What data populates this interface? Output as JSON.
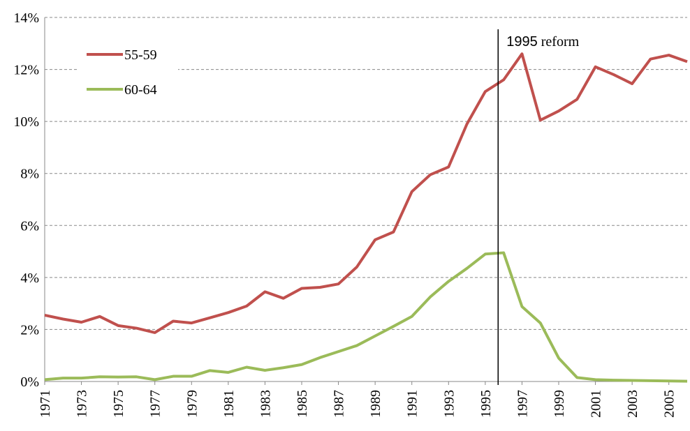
{
  "chart_data": {
    "type": "line",
    "x": [
      1971,
      1972,
      1973,
      1974,
      1975,
      1976,
      1977,
      1978,
      1979,
      1980,
      1981,
      1982,
      1983,
      1984,
      1985,
      1986,
      1987,
      1988,
      1989,
      1990,
      1991,
      1992,
      1993,
      1994,
      1995,
      1996,
      1997,
      1998,
      1999,
      2000,
      2001,
      2002,
      2003,
      2004,
      2005,
      2006
    ],
    "series": [
      {
        "name": "55-59",
        "color": "#c0504d",
        "values": [
          2.55,
          2.4,
          2.28,
          2.5,
          2.15,
          2.05,
          1.88,
          2.32,
          2.25,
          2.45,
          2.65,
          2.9,
          3.45,
          3.2,
          3.58,
          3.62,
          3.75,
          4.4,
          5.45,
          5.75,
          7.3,
          7.95,
          8.25,
          9.9,
          11.15,
          11.6,
          12.6,
          10.05,
          10.4,
          10.85,
          12.1,
          11.8,
          11.45,
          12.4,
          12.55,
          12.3
        ]
      },
      {
        "name": "60-64",
        "color": "#9bbb59",
        "values": [
          0.07,
          0.13,
          0.13,
          0.18,
          0.17,
          0.18,
          0.07,
          0.2,
          0.2,
          0.42,
          0.35,
          0.55,
          0.43,
          0.53,
          0.65,
          0.92,
          1.15,
          1.38,
          1.75,
          2.12,
          2.5,
          3.25,
          3.85,
          4.35,
          4.9,
          4.95,
          2.88,
          2.25,
          0.9,
          0.15,
          0.07,
          0.05,
          0.04,
          0.03,
          0.02,
          0.01
        ]
      }
    ],
    "xlim": [
      1971,
      2006
    ],
    "xticks": [
      1971,
      1973,
      1975,
      1977,
      1979,
      1981,
      1983,
      1985,
      1987,
      1989,
      1991,
      1993,
      1995,
      1997,
      1999,
      2001,
      2003,
      2005
    ],
    "ylim": [
      0,
      14
    ],
    "yticks": [
      {
        "value": 0,
        "label": "0%"
      },
      {
        "value": 2,
        "label": "2%"
      },
      {
        "value": 4,
        "label": "4%"
      },
      {
        "value": 6,
        "label": "6%"
      },
      {
        "value": 8,
        "label": "8%"
      },
      {
        "value": 10,
        "label": "10%"
      },
      {
        "value": 12,
        "label": "12%"
      },
      {
        "value": 14,
        "label": "14%"
      }
    ],
    "grid": true,
    "legend": "upper-left",
    "annotation": {
      "number": "1995",
      "text": "reform",
      "x": 1995.7
    }
  }
}
